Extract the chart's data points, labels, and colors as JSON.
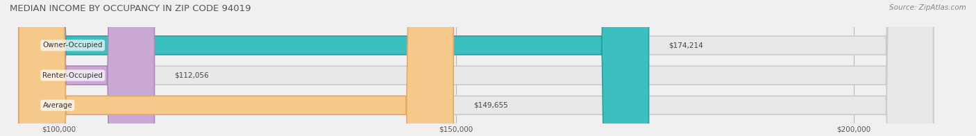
{
  "title": "MEDIAN INCOME BY OCCUPANCY IN ZIP CODE 94019",
  "source": "Source: ZipAtlas.com",
  "categories": [
    "Owner-Occupied",
    "Renter-Occupied",
    "Average"
  ],
  "values": [
    174214,
    112056,
    149655
  ],
  "bar_colors": [
    "#3bbfbf",
    "#c9a8d4",
    "#f5c98a"
  ],
  "bar_edge_colors": [
    "#2aa0a0",
    "#b088b8",
    "#e8a860"
  ],
  "label_colors": [
    "#ffffff",
    "#555555",
    "#555555"
  ],
  "value_labels": [
    "$174,214",
    "$112,056",
    "$149,655"
  ],
  "xmin": 95000,
  "xmax": 210000,
  "tick_values": [
    100000,
    150000,
    200000
  ],
  "tick_labels": [
    "$100,000",
    "$150,000",
    "$200,000"
  ],
  "background_color": "#f0f0f0",
  "bar_bg_color": "#e8e8e8",
  "bar_height": 0.62,
  "figsize": [
    14.06,
    1.96
  ],
  "dpi": 100
}
